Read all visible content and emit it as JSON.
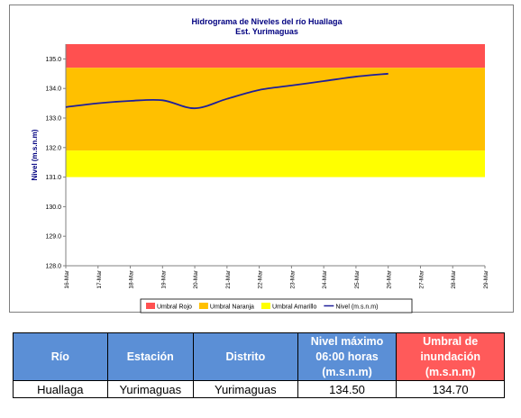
{
  "chart_data": {
    "type": "line",
    "title": "Hidrograma de Niveles del río Huallaga",
    "subtitle": "Est. Yurimaguas",
    "ylabel": "Nivel (m.s.n.m)",
    "xlabel": "",
    "ylim": [
      128.0,
      135.5
    ],
    "yticks": [
      "128.0",
      "129.0",
      "130.0",
      "131.0",
      "132.0",
      "133.0",
      "134.0",
      "135.0"
    ],
    "x_categories": [
      "16-Mar",
      "17-Mar",
      "18-Mar",
      "19-Mar",
      "20-Mar",
      "21-Mar",
      "22-Mar",
      "23-Mar",
      "24-Mar",
      "25-Mar",
      "26-Mar",
      "27-Mar",
      "28-Mar",
      "29-Mar"
    ],
    "grid": false,
    "legend_position": "bottom",
    "bands": [
      {
        "name": "Umbral Rojo",
        "from": 134.7,
        "to": 135.5,
        "color": "#ff5050"
      },
      {
        "name": "Umbral Naranja",
        "from": 131.9,
        "to": 134.7,
        "color": "#ffc000"
      },
      {
        "name": "Umbral Amarillo",
        "from": 131.0,
        "to": 131.9,
        "color": "#ffff00"
      }
    ],
    "series": [
      {
        "name": "Nivel (m.s.n.m)",
        "color": "#1f1f9a",
        "x": [
          "16-Mar",
          "17-Mar",
          "18-Mar",
          "19-Mar",
          "20-Mar",
          "21-Mar",
          "22-Mar",
          "23-Mar",
          "24-Mar",
          "25-Mar",
          "26-Mar"
        ],
        "values": [
          133.37,
          133.5,
          133.58,
          133.6,
          133.33,
          133.65,
          133.95,
          134.1,
          134.25,
          134.4,
          134.5
        ]
      }
    ]
  },
  "table": {
    "headers": [
      "Río",
      "Estación",
      "Distrito",
      "Nivel máximo 06:00 horas (m.s.n.m)",
      "Umbral de inundación (m.s.n.m)"
    ],
    "header_colors": [
      "#5b8fd6",
      "#5b8fd6",
      "#5b8fd6",
      "#5b8fd6",
      "#ff5a5a"
    ],
    "row": [
      "Huallaga",
      "Yurimaguas",
      "Yurimaguas",
      "134.50",
      "134.70"
    ]
  }
}
